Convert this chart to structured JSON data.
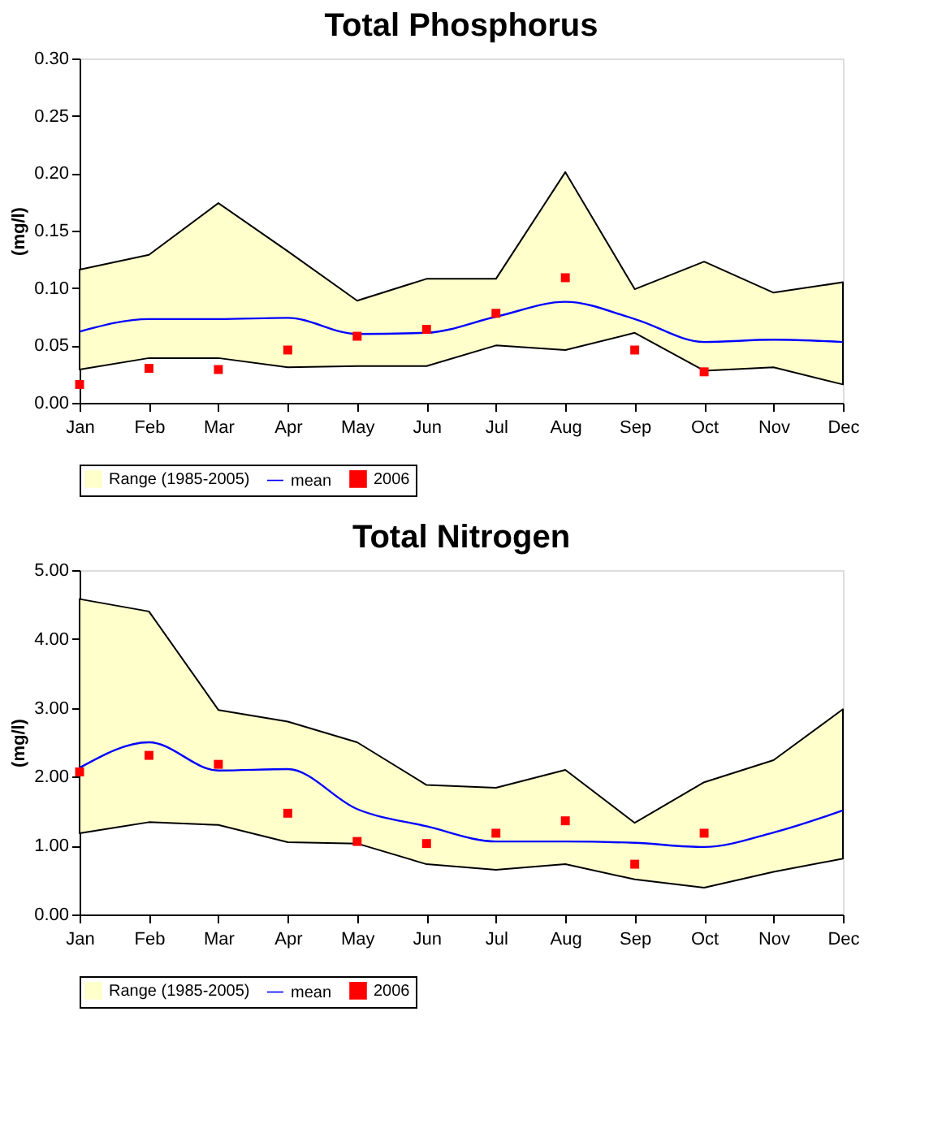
{
  "chart_data": [
    {
      "type": "line",
      "title": "Total Phosphorus",
      "ylabel": "(mg/l)",
      "categories": [
        "Jan",
        "Feb",
        "Mar",
        "Apr",
        "May",
        "Jun",
        "Jul",
        "Aug",
        "Sep",
        "Oct",
        "Nov",
        "Dec"
      ],
      "ylim": [
        0,
        0.3
      ],
      "yticks": [
        {
          "value": 0,
          "label": "0.00"
        },
        {
          "value": 0.05,
          "label": "0.05"
        },
        {
          "value": 0.1,
          "label": "0.10"
        },
        {
          "value": 0.15,
          "label": "0.15"
        },
        {
          "value": 0.2,
          "label": "0.20"
        },
        {
          "value": 0.25,
          "label": "0.25"
        },
        {
          "value": 0.3,
          "label": "0.30"
        }
      ],
      "grid": false,
      "legend": "bottom",
      "series": [
        {
          "name": "Range (1985-2005)",
          "type": "area",
          "color": "#ffffcc",
          "lower": [
            0.029,
            0.039,
            0.039,
            0.031,
            0.032,
            0.032,
            0.05,
            0.046,
            0.061,
            0.028,
            0.031,
            0.016
          ],
          "values": [
            null,
            null,
            null,
            null,
            null,
            null,
            null,
            null,
            null,
            null,
            null,
            null
          ],
          "upper": [
            0.116,
            0.129,
            0.174,
            0.132,
            0.089,
            0.108,
            0.108,
            0.201,
            0.099,
            0.123,
            0.096,
            0.105
          ]
        },
        {
          "name": "mean",
          "color": "#0000ff",
          "marker": "none",
          "values": [
            0.062,
            0.073,
            0.073,
            0.074,
            0.06,
            0.061,
            0.075,
            0.088,
            0.073,
            0.053,
            0.055,
            0.053
          ]
        },
        {
          "name": "2006",
          "type": "scatter",
          "color": "#ff0000",
          "marker": "square",
          "values": [
            0.016,
            0.03,
            0.029,
            0.046,
            0.058,
            0.064,
            0.078,
            0.109,
            0.046,
            0.027,
            null,
            null
          ]
        }
      ]
    },
    {
      "type": "line",
      "title": "Total Nitrogen",
      "ylabel": "(mg/l)",
      "categories": [
        "Jan",
        "Feb",
        "Mar",
        "Apr",
        "May",
        "Jun",
        "Jul",
        "Aug",
        "Sep",
        "Oct",
        "Nov",
        "Dec"
      ],
      "ylim": [
        0,
        5
      ],
      "yticks": [
        {
          "value": 0,
          "label": "0.00"
        },
        {
          "value": 1,
          "label": "1.00"
        },
        {
          "value": 2,
          "label": "2.00"
        },
        {
          "value": 3,
          "label": "3.00"
        },
        {
          "value": 4,
          "label": "4.00"
        },
        {
          "value": 5,
          "label": "5.00"
        }
      ],
      "grid": false,
      "legend": "bottom",
      "series": [
        {
          "name": "Range (1985-2005)",
          "type": "area",
          "color": "#ffffcc",
          "lower": [
            1.18,
            1.34,
            1.3,
            1.05,
            1.03,
            0.73,
            0.65,
            0.73,
            0.51,
            0.39,
            0.62,
            0.81
          ],
          "values": [
            null,
            null,
            null,
            null,
            null,
            null,
            null,
            null,
            null,
            null,
            null,
            null
          ],
          "upper": [
            4.58,
            4.4,
            2.97,
            2.8,
            2.5,
            1.88,
            1.84,
            2.1,
            1.33,
            1.92,
            2.24,
            2.98
          ]
        },
        {
          "name": "mean",
          "color": "#0000ff",
          "marker": "none",
          "values": [
            2.13,
            2.5,
            2.09,
            2.11,
            1.53,
            1.28,
            1.06,
            1.06,
            1.04,
            0.98,
            1.19,
            1.51
          ]
        },
        {
          "name": "2006",
          "type": "scatter",
          "color": "#ff0000",
          "marker": "square",
          "values": [
            2.07,
            2.31,
            2.18,
            1.47,
            1.06,
            1.03,
            1.18,
            1.36,
            0.73,
            1.18,
            null,
            null
          ]
        }
      ]
    }
  ]
}
